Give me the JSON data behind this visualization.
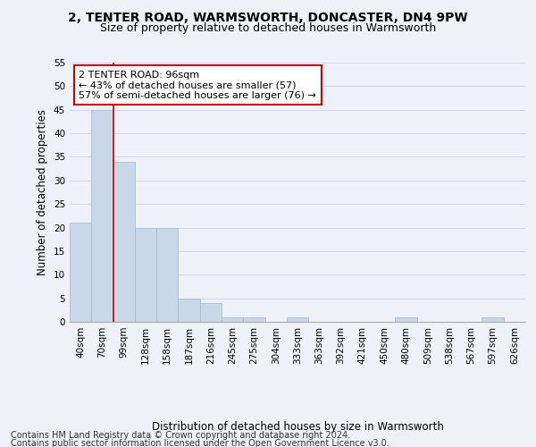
{
  "title1": "2, TENTER ROAD, WARMSWORTH, DONCASTER, DN4 9PW",
  "title2": "Size of property relative to detached houses in Warmsworth",
  "xlabel": "Distribution of detached houses by size in Warmsworth",
  "ylabel": "Number of detached properties",
  "categories": [
    "40sqm",
    "70sqm",
    "99sqm",
    "128sqm",
    "158sqm",
    "187sqm",
    "216sqm",
    "245sqm",
    "275sqm",
    "304sqm",
    "333sqm",
    "363sqm",
    "392sqm",
    "421sqm",
    "450sqm",
    "480sqm",
    "509sqm",
    "538sqm",
    "567sqm",
    "597sqm",
    "626sqm"
  ],
  "values": [
    21,
    45,
    34,
    20,
    20,
    5,
    4,
    1,
    1,
    0,
    1,
    0,
    0,
    0,
    0,
    1,
    0,
    0,
    0,
    1,
    0
  ],
  "bar_color": "#c8d8e8",
  "bar_edge_color": "#a0b8cc",
  "grid_color": "#d0d8e8",
  "vline_color": "#cc0000",
  "vline_x_idx": 1.5,
  "annotation_line1": "2 TENTER ROAD: 96sqm",
  "annotation_line2": "← 43% of detached houses are smaller (57)",
  "annotation_line3": "57% of semi-detached houses are larger (76) →",
  "annotation_box_color": "#ffffff",
  "annotation_box_edge": "#cc0000",
  "ylim": [
    0,
    55
  ],
  "yticks": [
    0,
    5,
    10,
    15,
    20,
    25,
    30,
    35,
    40,
    45,
    50,
    55
  ],
  "footer1": "Contains HM Land Registry data © Crown copyright and database right 2024.",
  "footer2": "Contains public sector information licensed under the Open Government Licence v3.0.",
  "bg_color": "#eef2f8",
  "title1_fontsize": 10,
  "title2_fontsize": 9,
  "axis_label_fontsize": 8.5,
  "tick_fontsize": 7.5,
  "annotation_fontsize": 8,
  "footer_fontsize": 7
}
